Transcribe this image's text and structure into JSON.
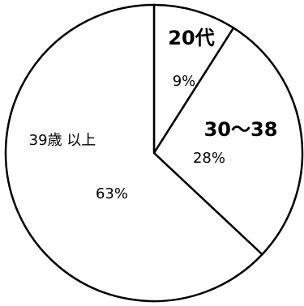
{
  "chart_data": {
    "type": "pie",
    "title": "",
    "slices": [
      {
        "label": "20代",
        "value": 9,
        "value_label": "9%",
        "emphasis": "bold"
      },
      {
        "label": "30〜38",
        "value": 28,
        "value_label": "28%",
        "emphasis": "bold"
      },
      {
        "label": "39歳 以上",
        "value": 63,
        "value_label": "63%",
        "emphasis": "normal"
      }
    ],
    "start_angle_deg": 0,
    "direction": "clockwise",
    "colors": {
      "fill": "#ffffff",
      "stroke": "#000000"
    }
  }
}
